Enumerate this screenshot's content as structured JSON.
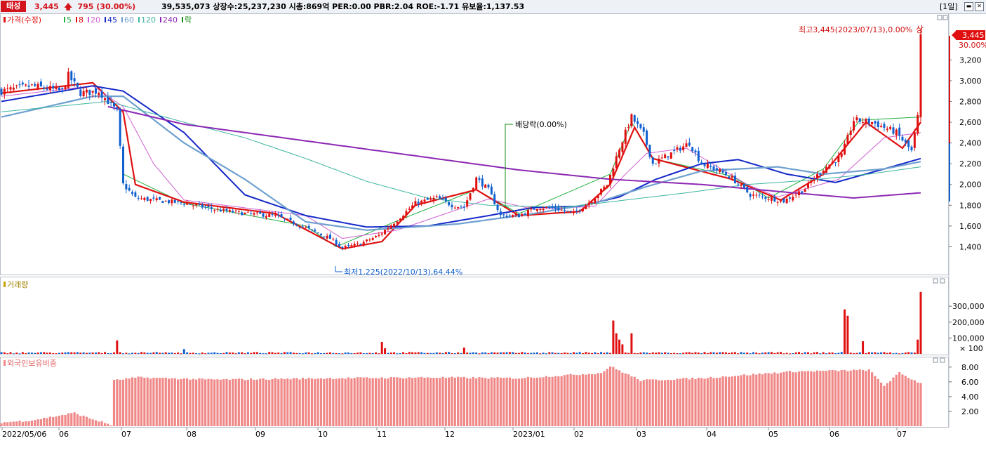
{
  "header": {
    "name": "태성",
    "price": "3,445",
    "change": "795",
    "change_pct": "(30.00%)",
    "info": "39,535,073  상장수:25,237,230  시총:869억  PER:0.00  PBR:2.04  ROE:-1.71  유보율:1,137.53",
    "period": "[1일]"
  },
  "legend": {
    "price_label": "가격(수정)",
    "ma": [
      {
        "label": "5",
        "color": "#20b040"
      },
      {
        "label": "8",
        "color": "#e01010"
      },
      {
        "label": "20",
        "color": "#d060d0"
      },
      {
        "label": "45",
        "color": "#1428c8"
      },
      {
        "label": "60",
        "color": "#6ea0d0"
      },
      {
        "label": "120",
        "color": "#3cb4a0"
      },
      {
        "label": "240",
        "color": "#8c28b4"
      }
    ],
    "event_label": "락",
    "volume_label": "거래량",
    "foreign_label": "외국인보유비중"
  },
  "annotations": {
    "high": "최고3,445(2023/07/13),0.00%",
    "up_mark": "상",
    "low": "최저1,225(2022/10/13),64.44%",
    "dividend": "배당락(0.00%)",
    "last_price": "3,445",
    "last_pct": "30.00%"
  },
  "colors": {
    "up": "#e01010",
    "down": "#1060d0",
    "foreign": "#f08888",
    "panel_border": "#b8bec8"
  },
  "chart_data": {
    "type": "candlestick",
    "dates": [
      "2022/05/06",
      "2022/06",
      "2022/07",
      "2022/08",
      "2022/09",
      "2022/10",
      "2022/11",
      "2022/12",
      "2023/01",
      "2023/02",
      "2023/03",
      "2023/04",
      "2023/05",
      "2023/06",
      "2023/07/13"
    ],
    "x_ticks": [
      "2022/05/06",
      "06",
      "07",
      "08",
      "09",
      "10",
      "11",
      "12",
      "2023/01",
      "02",
      "03",
      "04",
      "05",
      "06",
      "07"
    ],
    "price_axis": {
      "ticks": [
        "3,200",
        "3,000",
        "2,800",
        "2,600",
        "2,400",
        "2,200",
        "2,000",
        "1,800",
        "1,600",
        "1,400"
      ],
      "ylim": [
        1200,
        3500
      ]
    },
    "volume_axis": {
      "ticks": [
        "300,000",
        "200,000",
        "100,000"
      ],
      "unit_label": "× 100",
      "ylim": [
        0,
        420000
      ]
    },
    "foreign_axis": {
      "ticks": [
        "8.00",
        "6.00",
        "4.00",
        "2.00"
      ],
      "ylim": [
        0,
        9.5
      ]
    },
    "close_anchors": [
      [
        0,
        2900
      ],
      [
        10,
        2950
      ],
      [
        20,
        2900
      ],
      [
        22,
        3050
      ],
      [
        26,
        2880
      ],
      [
        32,
        2900
      ],
      [
        38,
        2700
      ],
      [
        40,
        2000
      ],
      [
        44,
        1870
      ],
      [
        50,
        1850
      ],
      [
        60,
        1820
      ],
      [
        70,
        1760
      ],
      [
        80,
        1720
      ],
      [
        90,
        1700
      ],
      [
        100,
        1580
      ],
      [
        108,
        1480
      ],
      [
        112,
        1390
      ],
      [
        118,
        1430
      ],
      [
        124,
        1510
      ],
      [
        130,
        1660
      ],
      [
        136,
        1820
      ],
      [
        143,
        1870
      ],
      [
        148,
        1800
      ],
      [
        152,
        1780
      ],
      [
        156,
        2060
      ],
      [
        160,
        1950
      ],
      [
        164,
        1700
      ],
      [
        170,
        1700
      ],
      [
        176,
        1780
      ],
      [
        182,
        1770
      ],
      [
        188,
        1720
      ],
      [
        194,
        1850
      ],
      [
        199,
        2000
      ],
      [
        203,
        2350
      ],
      [
        207,
        2650
      ],
      [
        211,
        2480
      ],
      [
        214,
        2200
      ],
      [
        220,
        2300
      ],
      [
        226,
        2400
      ],
      [
        230,
        2200
      ],
      [
        236,
        2130
      ],
      [
        240,
        2060
      ],
      [
        246,
        1900
      ],
      [
        252,
        1870
      ],
      [
        257,
        1840
      ],
      [
        264,
        1960
      ],
      [
        270,
        2150
      ],
      [
        276,
        2280
      ],
      [
        280,
        2620
      ],
      [
        286,
        2600
      ],
      [
        294,
        2500
      ],
      [
        299,
        2320
      ],
      [
        301,
        2650
      ],
      [
        302,
        3445
      ]
    ],
    "ma_anchors": {
      "5": [
        [
          40,
          2100
        ],
        [
          60,
          1820
        ],
        [
          100,
          1600
        ],
        [
          110,
          1400
        ],
        [
          130,
          1650
        ],
        [
          156,
          1950
        ],
        [
          170,
          1720
        ],
        [
          200,
          2100
        ],
        [
          207,
          2600
        ],
        [
          214,
          2250
        ],
        [
          240,
          2080
        ],
        [
          252,
          1870
        ],
        [
          270,
          2150
        ],
        [
          282,
          2620
        ],
        [
          302,
          2650
        ]
      ],
      "8": [
        [
          0,
          2880
        ],
        [
          30,
          2980
        ],
        [
          40,
          2700
        ],
        [
          44,
          2000
        ],
        [
          60,
          1830
        ],
        [
          90,
          1720
        ],
        [
          112,
          1380
        ],
        [
          125,
          1450
        ],
        [
          136,
          1800
        ],
        [
          156,
          1950
        ],
        [
          170,
          1700
        ],
        [
          190,
          1740
        ],
        [
          200,
          2000
        ],
        [
          208,
          2550
        ],
        [
          214,
          2250
        ],
        [
          240,
          2050
        ],
        [
          256,
          1850
        ],
        [
          270,
          2100
        ],
        [
          284,
          2600
        ],
        [
          296,
          2350
        ],
        [
          302,
          2600
        ]
      ],
      "20": [
        [
          0,
          2850
        ],
        [
          30,
          2950
        ],
        [
          40,
          2750
        ],
        [
          50,
          2200
        ],
        [
          60,
          1850
        ],
        [
          100,
          1700
        ],
        [
          112,
          1480
        ],
        [
          130,
          1560
        ],
        [
          160,
          1860
        ],
        [
          175,
          1760
        ],
        [
          195,
          1790
        ],
        [
          205,
          2100
        ],
        [
          212,
          2300
        ],
        [
          225,
          2350
        ],
        [
          245,
          2000
        ],
        [
          255,
          1880
        ],
        [
          275,
          2050
        ],
        [
          290,
          2450
        ],
        [
          302,
          2500
        ]
      ],
      "45": [
        [
          0,
          2800
        ],
        [
          30,
          2950
        ],
        [
          40,
          2900
        ],
        [
          60,
          2500
        ],
        [
          80,
          1900
        ],
        [
          100,
          1700
        ],
        [
          120,
          1590
        ],
        [
          140,
          1600
        ],
        [
          160,
          1700
        ],
        [
          175,
          1780
        ],
        [
          190,
          1790
        ],
        [
          203,
          1880
        ],
        [
          215,
          2050
        ],
        [
          230,
          2200
        ],
        [
          242,
          2240
        ],
        [
          258,
          2100
        ],
        [
          274,
          2020
        ],
        [
          290,
          2150
        ],
        [
          302,
          2250
        ]
      ],
      "60": [
        [
          0,
          2650
        ],
        [
          30,
          2850
        ],
        [
          40,
          2850
        ],
        [
          60,
          2400
        ],
        [
          80,
          2050
        ],
        [
          100,
          1640
        ],
        [
          120,
          1560
        ],
        [
          150,
          1620
        ],
        [
          175,
          1720
        ],
        [
          195,
          1820
        ],
        [
          212,
          1980
        ],
        [
          230,
          2130
        ],
        [
          255,
          2170
        ],
        [
          270,
          2100
        ],
        [
          290,
          2150
        ],
        [
          302,
          2220
        ]
      ],
      "120": [
        [
          0,
          2700
        ],
        [
          35,
          2800
        ],
        [
          60,
          2600
        ],
        [
          80,
          2450
        ],
        [
          100,
          2250
        ],
        [
          120,
          2030
        ],
        [
          140,
          1870
        ],
        [
          160,
          1800
        ],
        [
          185,
          1780
        ],
        [
          205,
          1850
        ],
        [
          225,
          1920
        ],
        [
          245,
          2000
        ],
        [
          265,
          2040
        ],
        [
          285,
          2100
        ],
        [
          302,
          2170
        ]
      ],
      "240": [
        [
          35,
          2750
        ],
        [
          60,
          2580
        ],
        [
          100,
          2420
        ],
        [
          140,
          2260
        ],
        [
          170,
          2140
        ],
        [
          200,
          2050
        ],
        [
          230,
          2000
        ],
        [
          260,
          1920
        ],
        [
          280,
          1870
        ],
        [
          302,
          1920
        ]
      ]
    },
    "volume_spikes": [
      [
        38,
        85000
      ],
      [
        60,
        30000
      ],
      [
        125,
        75000
      ],
      [
        126,
        35000
      ],
      [
        152,
        40000
      ],
      [
        201,
        210000
      ],
      [
        202,
        130000
      ],
      [
        203,
        90000
      ],
      [
        204,
        60000
      ],
      [
        207,
        130000
      ],
      [
        277,
        280000
      ],
      [
        278,
        240000
      ],
      [
        283,
        80000
      ],
      [
        301,
        90000
      ],
      [
        302,
        390000
      ]
    ],
    "foreign_anchors": [
      [
        0,
        0.5
      ],
      [
        10,
        0.8
      ],
      [
        20,
        1.5
      ],
      [
        24,
        1.8
      ],
      [
        28,
        1.2
      ],
      [
        36,
        0.2
      ],
      [
        37,
        6.2
      ],
      [
        45,
        6.6
      ],
      [
        70,
        6.3
      ],
      [
        110,
        6.5
      ],
      [
        140,
        6.6
      ],
      [
        170,
        6.5
      ],
      [
        197,
        7.2
      ],
      [
        200,
        8.1
      ],
      [
        210,
        6.2
      ],
      [
        230,
        6.5
      ],
      [
        260,
        7.4
      ],
      [
        285,
        7.6
      ],
      [
        290,
        5.5
      ],
      [
        295,
        7.2
      ],
      [
        302,
        5.8
      ]
    ]
  }
}
